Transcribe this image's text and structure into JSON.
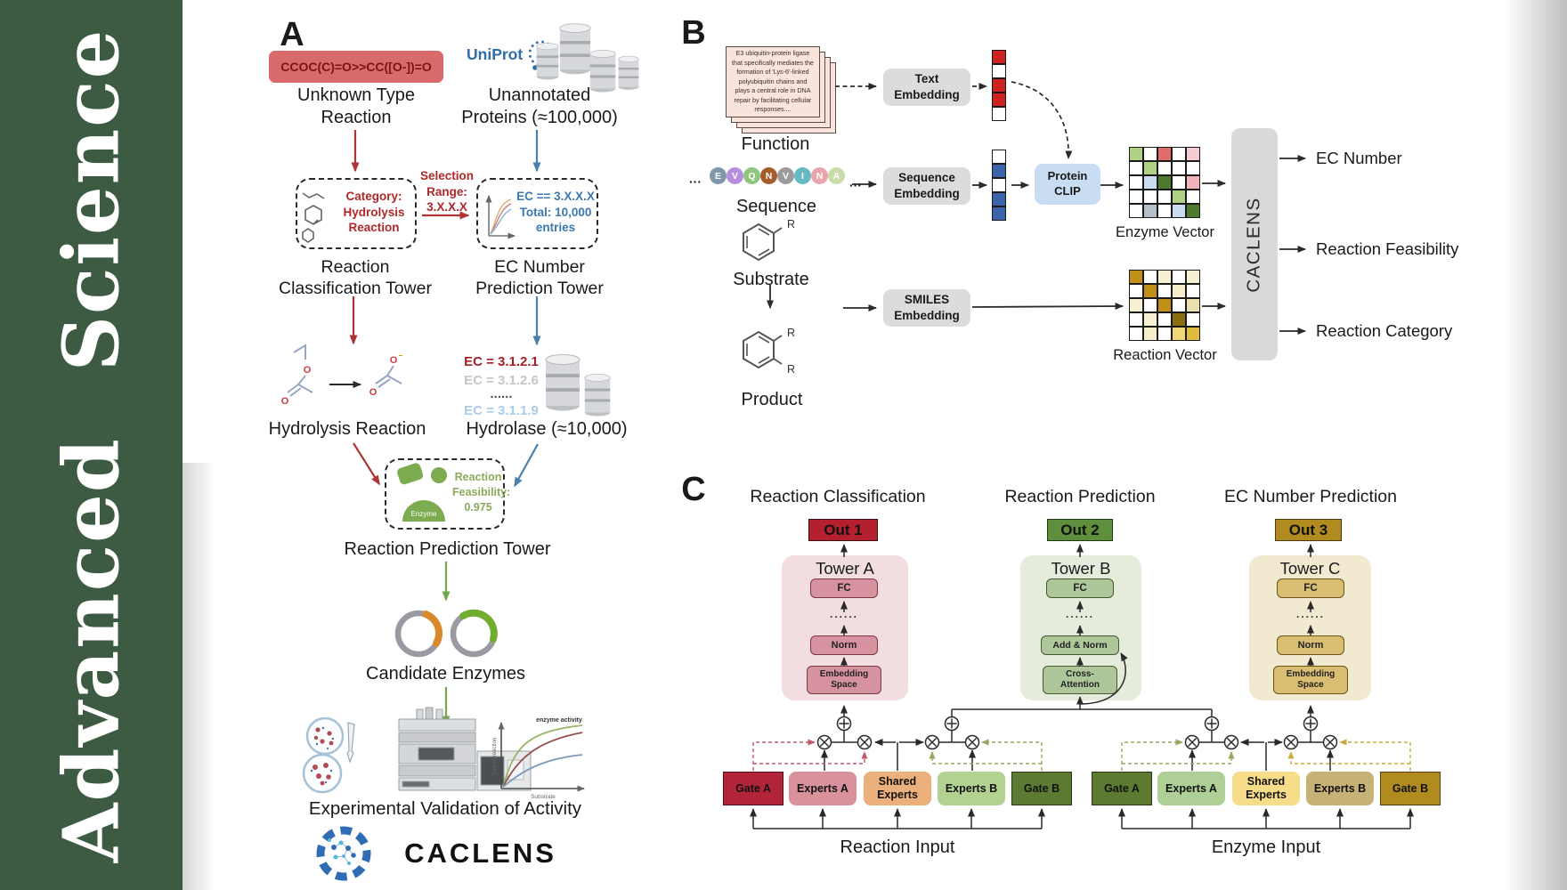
{
  "journal": {
    "name": "Advanced Science"
  },
  "panelA": {
    "label": "A",
    "smiles": "CCOC(C)=O>>CC([O-])=O",
    "unknown_type": "Unknown Type\nReaction",
    "uniprot": "UniProt",
    "unannotated": "Unannotated\nProteins (≈100,000)",
    "category": "Category:\nHydrolysis\nReaction",
    "selection": "Selection\nRange:\n3.X.X.X",
    "ec_filter": "EC == 3.X.X.X\nTotal: 10,000\nentries",
    "classification_tower": "Reaction\nClassification Tower",
    "ec_tower": "EC Number\nPrediction Tower",
    "hydrolysis_reaction": "Hydrolysis Reaction",
    "hydrolase": "Hydrolase (≈10,000)",
    "ec_list": [
      "EC = 3.1.2.1",
      "EC = 3.1.2.6",
      "......",
      "EC = 3.1.1.9"
    ],
    "enzyme": "Enzyme",
    "feasibility": "Reaction\nFeasibility:\n0.975",
    "prediction_tower": "Reaction Prediction Tower",
    "candidate_enzymes": "Candidate Enzymes",
    "validation": "Experimental Validation of Activity",
    "activity_plot": {
      "annotation": "enzyme activity",
      "ylabel": "Rate of reaction",
      "xlabel": "Substrate"
    },
    "brand": "CACLENS"
  },
  "panelB": {
    "label": "B",
    "function_text": "E3 ubiquitin-protein ligase\nthat specifically mediates the\nformation of 'Lys-6'-linked\npolyubiquitin chains and\nplays a central role in DNA\nrepair by facilitating cellular\nresponses....",
    "function_label": "Function",
    "sequence_label": "Sequence",
    "seq_dots": "···",
    "residues": [
      {
        "letter": "E",
        "color": "#7f98ad"
      },
      {
        "letter": "V",
        "color": "#b78ede"
      },
      {
        "letter": "Q",
        "color": "#8fc57f"
      },
      {
        "letter": "N",
        "color": "#a35d2a"
      },
      {
        "letter": "V",
        "color": "#9b9b9b"
      },
      {
        "letter": "I",
        "color": "#66bac2"
      },
      {
        "letter": "N",
        "color": "#eaa4ac"
      },
      {
        "letter": "A",
        "color": "#cbdcaa"
      }
    ],
    "substrate_label": "Substrate",
    "product_label": "Product",
    "r_label": "R",
    "text_embedding": "Text\nEmbedding",
    "sequence_embedding": "Sequence\nEmbedding",
    "smiles_embedding": "SMILES\nEmbedding",
    "protein_clip": "Protein\nCLIP",
    "enzyme_vector_label": "Enzyme Vector",
    "reaction_vector_label": "Reaction Vector",
    "caclens": "CACLENS",
    "outputs": [
      "EC Number",
      "Reaction Feasibility",
      "Reaction Category"
    ],
    "text_vector": [
      "#cc2222",
      "#ffffff",
      "#cc2222",
      "#cc2222",
      "#ffffff"
    ],
    "sequence_vector": [
      "#ffffff",
      "#3d64a8",
      "#ffffff",
      "#3d64a8",
      "#3d64a8"
    ],
    "enzyme_matrix": [
      [
        "#aed184",
        "#ffffff",
        "#e06c6c",
        "#ffffff",
        "#f5ccd2"
      ],
      [
        "#ffffff",
        "#aed184",
        "#ffffff",
        "#ffffff",
        "#ffffff"
      ],
      [
        "#ffffff",
        "#ccdcf0",
        "#4e7a2e",
        "#ffffff",
        "#f0b4ba"
      ],
      [
        "#ffffff",
        "#ffffff",
        "#ffffff",
        "#aed184",
        "#ffffff"
      ],
      [
        "#ffffff",
        "#b4bfc9",
        "#ffffff",
        "#ccdcf0",
        "#4e7a2e"
      ]
    ],
    "reaction_matrix": [
      [
        "#c08f18",
        "#ffffff",
        "#f7f0d2",
        "#ffffff",
        "#f7f0d2"
      ],
      [
        "#ffffff",
        "#c08f18",
        "#ffffff",
        "#f7eccc",
        "#ffffff"
      ],
      [
        "#f7f0d2",
        "#ffffff",
        "#c08f18",
        "#ffffff",
        "#eadfb0"
      ],
      [
        "#ffffff",
        "#f7f0d2",
        "#ffffff",
        "#8a6d10",
        "#ffffff"
      ],
      [
        "#ffffff",
        "#f7eccc",
        "#ffffff",
        "#f0d878",
        "#e0bc3c"
      ]
    ]
  },
  "panelC": {
    "label": "C",
    "titles": [
      "Reaction Classification",
      "Reaction Prediction",
      "EC Number Prediction"
    ],
    "outs": [
      "Out 1",
      "Out 2",
      "Out 3"
    ],
    "tower_names": [
      "Tower A",
      "Tower B",
      "Tower C"
    ],
    "dots": "......",
    "fc": "FC",
    "norm": "Norm",
    "embedding_space": "Embedding\nSpace",
    "add_norm": "Add & Norm",
    "cross_attention": "Cross-\nAttention",
    "gate_a": "Gate A",
    "experts_a": "Experts A",
    "shared_experts": "Shared\nExperts",
    "experts_b": "Experts B",
    "gate_b": "Gate B",
    "reaction_input": "Reaction Input",
    "enzyme_input": "Enzyme Input"
  },
  "colors": {
    "sidebar_green": "#3d5b42",
    "smiles_box": "#d96a6a",
    "uniprot_blue": "#2f6ca8",
    "accent_red": "#b03434",
    "accent_blue": "#4a7fae",
    "accent_green": "#76a34e",
    "out1": "#b5202e",
    "out2": "#5d8f3c",
    "out3": "#b08b20",
    "tower_a_bg": "#f2dde1",
    "tower_b_bg": "#e6ecdc",
    "tower_c_bg": "#f2ead0",
    "gate_a_left": "#b22438",
    "experts_a_left": "#d9929c",
    "shared_left": "#ecb07c",
    "experts_b_left": "#b2d292",
    "gate_b_left": "#5d7a33",
    "gate_a_right": "#5d7a33",
    "experts_a_right": "#aed096",
    "shared_right": "#f7dd8a",
    "experts_b_right": "#c8b176",
    "gate_b_right": "#b08b20"
  }
}
